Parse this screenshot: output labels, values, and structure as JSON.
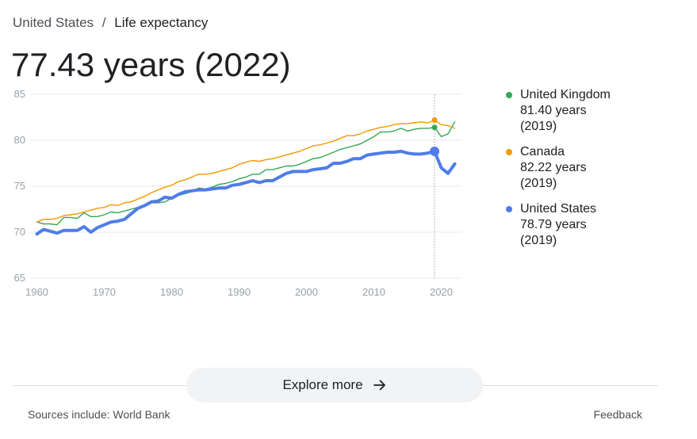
{
  "breadcrumb": {
    "parent": "United States",
    "separator": "/",
    "current": "Life expectancy"
  },
  "headline": "77.43 years (2022)",
  "legend": [
    {
      "name": "United Kingdom",
      "value": "81.40 years",
      "year": "(2019)",
      "color": "#34a853"
    },
    {
      "name": "Canada",
      "value": "82.22 years",
      "year": "(2019)",
      "color": "#f29900"
    },
    {
      "name": "United States",
      "value": "78.79 years",
      "year": "(2019)",
      "color": "#4f7ce8"
    }
  ],
  "explore": {
    "label": "Explore more",
    "icon": "arrow-right-icon"
  },
  "footer": {
    "sources": "Sources include: World Bank",
    "feedback": "Feedback"
  },
  "chart_data": {
    "type": "line",
    "title": "",
    "xlabel": "",
    "ylabel": "",
    "xlim": [
      1959,
      2023
    ],
    "ylim": [
      65,
      85
    ],
    "x_ticks": [
      1960,
      1970,
      1980,
      1990,
      2000,
      2010,
      2020
    ],
    "y_ticks": [
      65,
      70,
      75,
      80,
      85
    ],
    "grid": true,
    "highlight_year": 2019,
    "legend_position": "right",
    "series": [
      {
        "name": "United Kingdom",
        "color": "#34a853",
        "x": [
          1960,
          1961,
          1962,
          1963,
          1964,
          1965,
          1966,
          1967,
          1968,
          1969,
          1970,
          1971,
          1972,
          1973,
          1974,
          1975,
          1976,
          1977,
          1978,
          1979,
          1980,
          1981,
          1982,
          1983,
          1984,
          1985,
          1986,
          1987,
          1988,
          1989,
          1990,
          1991,
          1992,
          1993,
          1994,
          1995,
          1996,
          1997,
          1998,
          1999,
          2000,
          2001,
          2002,
          2003,
          2004,
          2005,
          2006,
          2007,
          2008,
          2009,
          2010,
          2011,
          2012,
          2013,
          2014,
          2015,
          2016,
          2017,
          2018,
          2019,
          2020,
          2021,
          2022
        ],
        "values": [
          71.1,
          70.9,
          70.9,
          70.8,
          71.6,
          71.6,
          71.5,
          72.1,
          71.7,
          71.7,
          71.9,
          72.2,
          72.1,
          72.3,
          72.5,
          72.7,
          72.9,
          73.2,
          73.2,
          73.3,
          73.7,
          74.0,
          74.2,
          74.4,
          74.8,
          74.7,
          74.9,
          75.2,
          75.3,
          75.5,
          75.8,
          76.0,
          76.3,
          76.3,
          76.8,
          76.8,
          77.0,
          77.2,
          77.2,
          77.4,
          77.7,
          78.0,
          78.1,
          78.4,
          78.7,
          79.0,
          79.2,
          79.4,
          79.6,
          80.0,
          80.4,
          80.9,
          80.9,
          81.0,
          81.3,
          81.0,
          81.2,
          81.3,
          81.3,
          81.4,
          80.4,
          80.7,
          82.0
        ]
      },
      {
        "name": "Canada",
        "color": "#f29900",
        "x": [
          1960,
          1961,
          1962,
          1963,
          1964,
          1965,
          1966,
          1967,
          1968,
          1969,
          1970,
          1971,
          1972,
          1973,
          1974,
          1975,
          1976,
          1977,
          1978,
          1979,
          1980,
          1981,
          1982,
          1983,
          1984,
          1985,
          1986,
          1987,
          1988,
          1989,
          1990,
          1991,
          1992,
          1993,
          1994,
          1995,
          1996,
          1997,
          1998,
          1999,
          2000,
          2001,
          2002,
          2003,
          2004,
          2005,
          2006,
          2007,
          2008,
          2009,
          2010,
          2011,
          2012,
          2013,
          2014,
          2015,
          2016,
          2017,
          2018,
          2019,
          2020,
          2021,
          2022
        ],
        "values": [
          71.1,
          71.4,
          71.4,
          71.5,
          71.8,
          71.9,
          72.0,
          72.2,
          72.4,
          72.6,
          72.7,
          73.0,
          72.9,
          73.2,
          73.3,
          73.6,
          73.9,
          74.3,
          74.6,
          74.9,
          75.1,
          75.5,
          75.7,
          76.0,
          76.3,
          76.3,
          76.4,
          76.6,
          76.8,
          77.0,
          77.4,
          77.6,
          77.8,
          77.7,
          77.9,
          78.0,
          78.2,
          78.4,
          78.6,
          78.8,
          79.1,
          79.4,
          79.5,
          79.7,
          79.9,
          80.2,
          80.5,
          80.5,
          80.7,
          81.0,
          81.2,
          81.4,
          81.5,
          81.7,
          81.8,
          81.8,
          81.9,
          82.0,
          81.9,
          82.2,
          81.7,
          81.6,
          81.3
        ]
      },
      {
        "name": "United States",
        "color": "#4f7ce8",
        "x": [
          1960,
          1961,
          1962,
          1963,
          1964,
          1965,
          1966,
          1967,
          1968,
          1969,
          1970,
          1971,
          1972,
          1973,
          1974,
          1975,
          1976,
          1977,
          1978,
          1979,
          1980,
          1981,
          1982,
          1983,
          1984,
          1985,
          1986,
          1987,
          1988,
          1989,
          1990,
          1991,
          1992,
          1993,
          1994,
          1995,
          1996,
          1997,
          1998,
          1999,
          2000,
          2001,
          2002,
          2003,
          2004,
          2005,
          2006,
          2007,
          2008,
          2009,
          2010,
          2011,
          2012,
          2013,
          2014,
          2015,
          2016,
          2017,
          2018,
          2019,
          2020,
          2021,
          2022
        ],
        "values": [
          69.8,
          70.3,
          70.1,
          69.9,
          70.2,
          70.2,
          70.2,
          70.6,
          70.0,
          70.5,
          70.8,
          71.1,
          71.2,
          71.4,
          72.0,
          72.6,
          72.9,
          73.3,
          73.4,
          73.8,
          73.7,
          74.1,
          74.4,
          74.5,
          74.6,
          74.6,
          74.7,
          74.8,
          74.8,
          75.1,
          75.2,
          75.4,
          75.6,
          75.4,
          75.6,
          75.6,
          76.0,
          76.4,
          76.6,
          76.6,
          76.6,
          76.8,
          76.9,
          77.0,
          77.5,
          77.5,
          77.7,
          78.0,
          78.0,
          78.4,
          78.5,
          78.6,
          78.7,
          78.7,
          78.8,
          78.6,
          78.5,
          78.5,
          78.6,
          78.79,
          77.0,
          76.4,
          77.43
        ]
      }
    ]
  }
}
